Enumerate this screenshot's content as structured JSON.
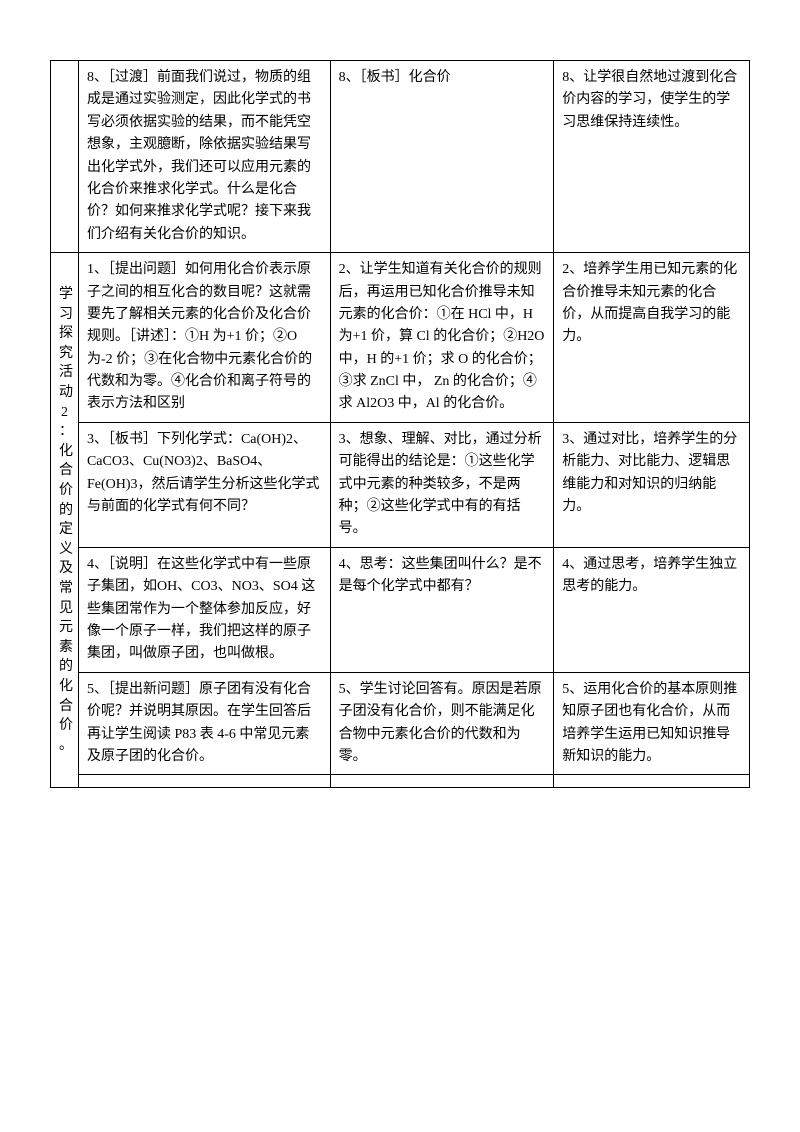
{
  "rows": [
    {
      "label": "",
      "teacher": "8、［过渡］前面我们说过，物质的组成是通过实验测定，因此化学式的书写必须依据实验的结果，而不能凭空想象，主观臆断，除依据实验结果写出化学式外，我们还可以应用元素的化合价来推求化学式。什么是化合价？如何来推求化学式呢？接下来我们介绍有关化合价的知识。",
      "student": "8、［板书］化合价",
      "intent": "8、让学很自然地过渡到化合价内容的学习，使学生的学习思维保持连续性。"
    },
    {
      "label": "学习探究活动2：化合价的定义及常见元素的化合价。",
      "teacher": "1、［提出问题］如何用化合价表示原子之间的相互化合的数目呢？这就需要先了解相关元素的化合价及化合价规则。［讲述］：①H 为+1 价；②O 为-2 价；③在化合物中元素化合价的代数和为零。④化合价和离子符号的表示方法和区别",
      "student": "2、让学生知道有关化合价的规则后，再运用已知化合价推导未知元素的化合价：①在 HCl 中，H 为+1 价，算 Cl 的化合价；②H2O 中，H 的+1 价；求 O 的化合价；③求 ZnCl 中， Zn 的化合价；④求 Al2O3 中，Al 的化合价。",
      "intent": "2、培养学生用已知元素的化合价推导未知元素的化合价，从而提高自我学习的能力。"
    },
    {
      "teacher": "3、［板书］下列化学式：Ca(OH)2、CaCO3、Cu(NO3)2、BaSO4、Fe(OH)3，然后请学生分析这些化学式与前面的化学式有何不同？",
      "student": "3、想象、理解、对比，通过分析可能得出的结论是：①这些化学式中元素的种类较多，不是两种；②这些化学式中有的有括号。",
      "intent": "3、通过对比，培养学生的分析能力、对比能力、逻辑思维能力和对知识的归纳能力。"
    },
    {
      "teacher": "4、［说明］在这些化学式中有一些原子集团，如OH、CO3、NO3、SO4 这些集团常作为一个整体参加反应，好像一个原子一样，我们把这样的原子集团，叫做原子团，也叫做根。",
      "student": "4、思考：这些集团叫什么？是不是每个化学式中都有？",
      "intent": "4、通过思考，培养学生独立思考的能力。"
    },
    {
      "teacher": "5、［提出新问题］原子团有没有化合价呢？并说明其原因。在学生回答后再让学生阅读 P83 表 4-6 中常见元素及原子团的化合价。",
      "student": "5、学生讨论回答有。原因是若原子团没有化合价，则不能满足化合物中元素化合价的代数和为零。",
      "intent": "5、运用化合价的基本原则推知原子团也有化合价，从而培养学生运用已知知识推导新知识的能力。"
    },
    {
      "teacher": "",
      "student": "",
      "intent": ""
    }
  ]
}
